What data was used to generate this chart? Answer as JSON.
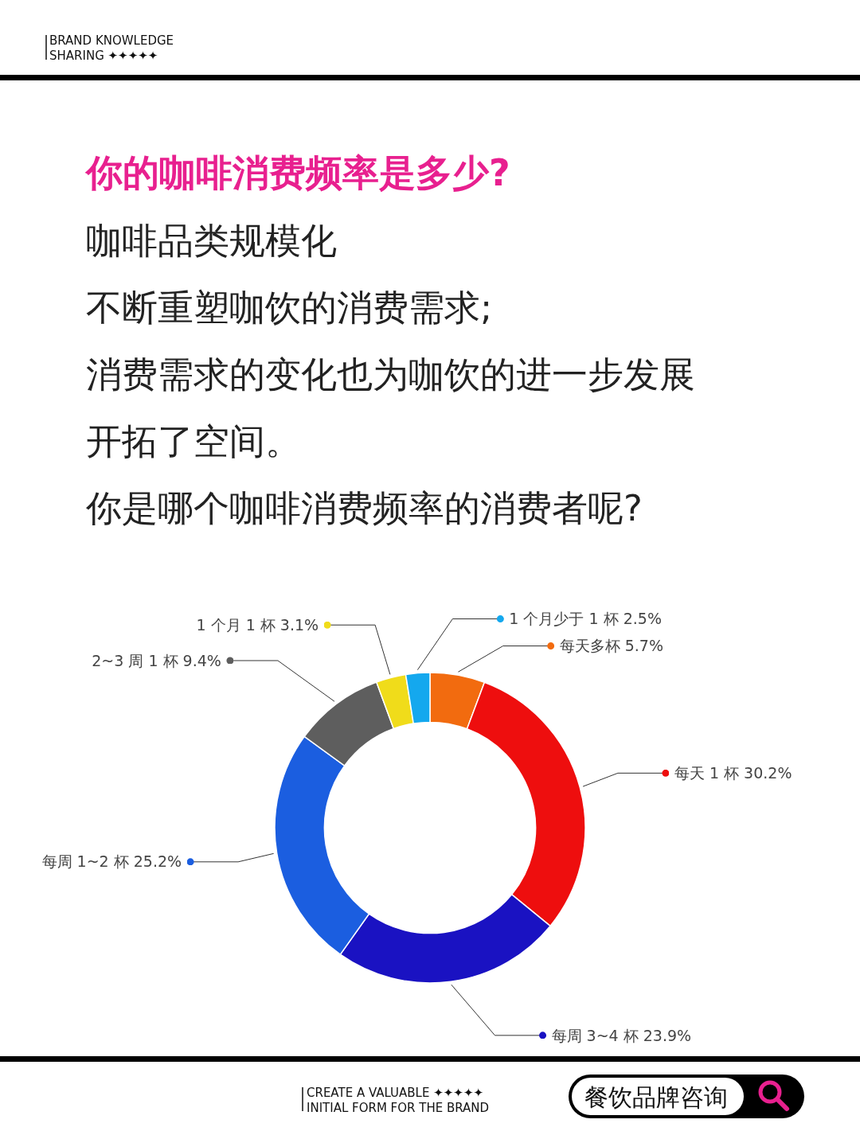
{
  "chart_data": {
    "type": "donut",
    "title": "你的咖啡消费频率是多少?",
    "subtitle": "咖啡品类规模化",
    "categories": [
      "每天多杯",
      "每天 1 杯",
      "每周 3~4 杯",
      "每周 1~2 杯",
      "2~3 周 1 杯",
      "1 个月 1 杯",
      "1 个月少于 1 杯"
    ],
    "values": [
      5.7,
      30.2,
      23.9,
      25.2,
      9.4,
      3.1,
      2.5
    ],
    "value_labels": [
      "5.7%",
      "30.2%",
      "23.9%",
      "25.2%",
      "9.4%",
      "3.1%",
      "2.5%"
    ],
    "colors": [
      "#f26b0f",
      "#ee0e0e",
      "#1a12c2",
      "#1b5ee0",
      "#5e5e5e",
      "#f0dc1a",
      "#14a8ee"
    ],
    "annotations": [
      "BRAND KNOWLEDGE\nSHARING ✦✦✦✦✦",
      "不断重塑咖饮的消费需求;",
      "消费需求的变化也为咖饮的进一步发展",
      "开拓了空间。",
      "你是哪个咖啡消费频率的消费者呢?",
      "CREATE A VALUABLE ✦✦✦✦✦\nINITIAL FORM FOR THE BRAND",
      "餐饮品牌咨询"
    ]
  }
}
